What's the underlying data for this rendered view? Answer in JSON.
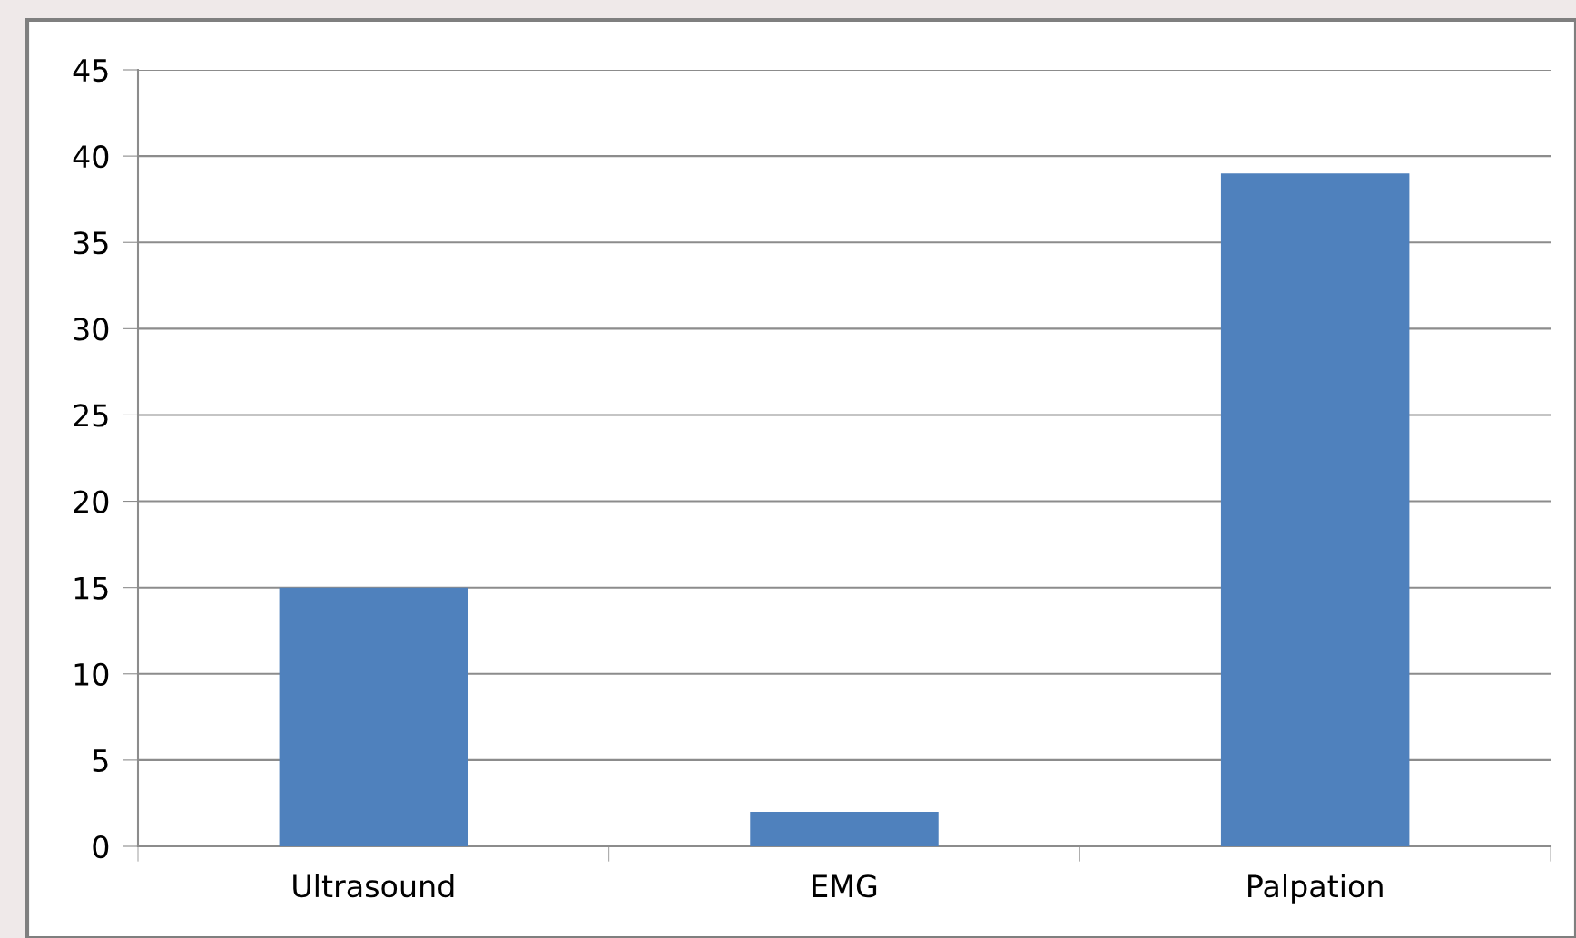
{
  "chart_data": {
    "type": "bar",
    "categories": [
      "Ultrasound",
      "EMG",
      "Palpation"
    ],
    "values": [
      15,
      2,
      39
    ],
    "color": "#4f81bd",
    "ylim": [
      0,
      45
    ],
    "yticks": [
      0,
      5,
      10,
      15,
      20,
      25,
      30,
      35,
      40,
      45
    ],
    "grid": "y",
    "legend": false
  }
}
